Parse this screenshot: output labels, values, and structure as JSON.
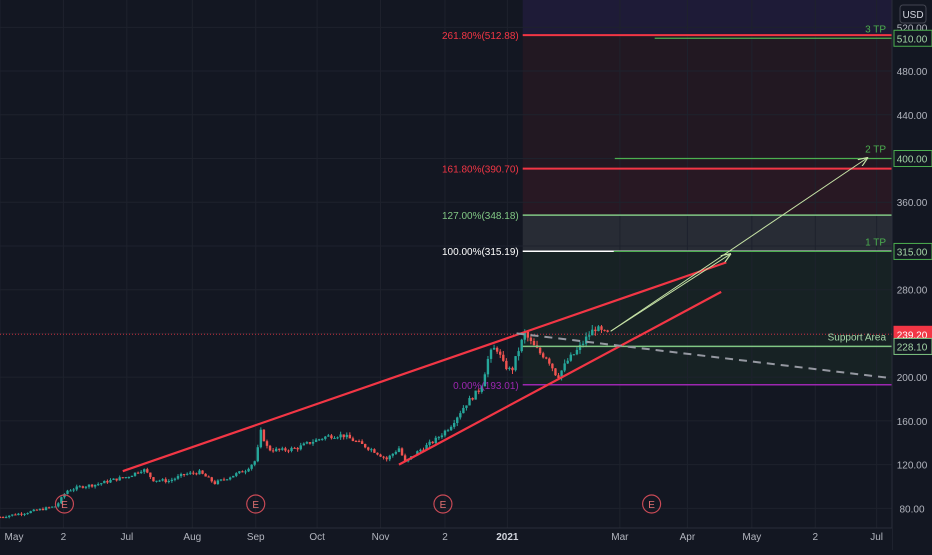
{
  "currency": "USD",
  "chart_data": {
    "type": "candlestick",
    "y_axis": {
      "ticks": [
        80,
        120,
        160,
        200,
        240,
        280,
        320,
        360,
        400,
        440,
        480,
        520
      ],
      "tick_labels": [
        "80.00",
        "120.00",
        "160.00",
        "200.00",
        "240.00",
        "280.00",
        "320.00",
        "360.00",
        "400.00",
        "440.00",
        "480.00",
        "520.00"
      ],
      "ylim": [
        62,
        545
      ]
    },
    "x_axis": {
      "labels": [
        {
          "t": 0,
          "label": "May"
        },
        {
          "t": 62,
          "label": "2"
        },
        {
          "t": 124,
          "label": "Jul"
        },
        {
          "t": 188,
          "label": "Aug"
        },
        {
          "t": 250,
          "label": "Sep"
        },
        {
          "t": 310,
          "label": "Oct"
        },
        {
          "t": 372,
          "label": "Nov"
        },
        {
          "t": 435,
          "label": "2"
        },
        {
          "t": 496,
          "label": "2021"
        },
        {
          "t": 606,
          "label": "Mar"
        },
        {
          "t": 672,
          "label": "Apr"
        },
        {
          "t": 735,
          "label": "May"
        },
        {
          "t": 797,
          "label": "2"
        },
        {
          "t": 857,
          "label": "Jul"
        }
      ],
      "xlim": [
        0,
        872
      ]
    },
    "current_price": "239.20",
    "price_series": [
      {
        "t": 0,
        "p": 72
      },
      {
        "t": 12,
        "p": 74
      },
      {
        "t": 25,
        "p": 76
      },
      {
        "t": 40,
        "p": 79
      },
      {
        "t": 55,
        "p": 82
      },
      {
        "t": 65,
        "p": 96
      },
      {
        "t": 80,
        "p": 100
      },
      {
        "t": 95,
        "p": 102
      },
      {
        "t": 110,
        "p": 106
      },
      {
        "t": 125,
        "p": 109
      },
      {
        "t": 140,
        "p": 116
      },
      {
        "t": 150,
        "p": 106
      },
      {
        "t": 165,
        "p": 105
      },
      {
        "t": 180,
        "p": 111
      },
      {
        "t": 195,
        "p": 113
      },
      {
        "t": 210,
        "p": 103
      },
      {
        "t": 225,
        "p": 109
      },
      {
        "t": 240,
        "p": 115
      },
      {
        "t": 250,
        "p": 124
      },
      {
        "t": 255,
        "p": 150
      },
      {
        "t": 262,
        "p": 134
      },
      {
        "t": 275,
        "p": 133
      },
      {
        "t": 290,
        "p": 135
      },
      {
        "t": 305,
        "p": 141
      },
      {
        "t": 320,
        "p": 146
      },
      {
        "t": 335,
        "p": 147
      },
      {
        "t": 350,
        "p": 140
      },
      {
        "t": 365,
        "p": 133
      },
      {
        "t": 378,
        "p": 125
      },
      {
        "t": 390,
        "p": 135
      },
      {
        "t": 396,
        "p": 122
      },
      {
        "t": 410,
        "p": 133
      },
      {
        "t": 425,
        "p": 142
      },
      {
        "t": 440,
        "p": 155
      },
      {
        "t": 455,
        "p": 175
      },
      {
        "t": 470,
        "p": 190
      },
      {
        "t": 478,
        "p": 220
      },
      {
        "t": 485,
        "p": 228
      },
      {
        "t": 492,
        "p": 212
      },
      {
        "t": 500,
        "p": 205
      },
      {
        "t": 507,
        "p": 225
      },
      {
        "t": 513,
        "p": 240
      },
      {
        "t": 520,
        "p": 230
      },
      {
        "t": 528,
        "p": 222
      },
      {
        "t": 535,
        "p": 218
      },
      {
        "t": 545,
        "p": 200
      },
      {
        "t": 555,
        "p": 215
      },
      {
        "t": 565,
        "p": 225
      },
      {
        "t": 575,
        "p": 238
      },
      {
        "t": 582,
        "p": 245
      },
      {
        "t": 590,
        "p": 240
      },
      {
        "t": 596,
        "p": 239
      }
    ],
    "fib_levels": [
      {
        "ratio": "0.00%",
        "price": 193.01,
        "label": "0.00%(193.01)",
        "color": "#9c27b0"
      },
      {
        "ratio": "100.00%",
        "price": 315.19,
        "label": "100.00%(315.19)",
        "color": "#ffffff"
      },
      {
        "ratio": "127.00%",
        "price": 348.18,
        "label": "127.00%(348.18)",
        "color": "#81c784"
      },
      {
        "ratio": "161.80%",
        "price": 390.7,
        "label": "161.80%(390.70)",
        "color": "#f23645"
      },
      {
        "ratio": "261.80%",
        "price": 512.88,
        "label": "261.80%(512.88)",
        "color": "#f23645"
      }
    ],
    "targets": [
      {
        "name": "1 TP",
        "price": 315.0,
        "label": "315.00"
      },
      {
        "name": "2 TP",
        "price": 400.0,
        "label": "400.00"
      },
      {
        "name": "3 TP",
        "price": 510.0,
        "label": "510.00"
      }
    ],
    "support": {
      "name": "Support Area",
      "price": 228.1,
      "label": "228.10"
    },
    "earnings_markers": [
      {
        "t": 63,
        "label": "E"
      },
      {
        "t": 250,
        "label": "E"
      },
      {
        "t": 433,
        "label": "E"
      },
      {
        "t": 637,
        "label": "E"
      }
    ],
    "trendlines": [
      {
        "name": "channel-upper-line",
        "from": {
          "t": 120,
          "p": 114
        },
        "to": {
          "t": 710,
          "p": 305
        },
        "color": "#f23645"
      },
      {
        "name": "channel-lower-line",
        "from": {
          "t": 390,
          "p": 120
        },
        "to": {
          "t": 705,
          "p": 278
        },
        "color": "#f23645"
      },
      {
        "name": "projection-dashed-line",
        "from": {
          "t": 505,
          "p": 240
        },
        "to": {
          "t": 872,
          "p": 199
        },
        "color": "#9598a1"
      }
    ],
    "projection_arrows": [
      {
        "name": "arrow-to-tp1",
        "from": {
          "t": 597,
          "p": 242
        },
        "to": {
          "t": 713,
          "p": 312
        },
        "color": "#c5e1a5"
      },
      {
        "name": "arrow-to-tp2",
        "from": {
          "t": 597,
          "p": 242
        },
        "to": {
          "t": 847,
          "p": 400
        },
        "color": "#c5e1a5"
      }
    ]
  }
}
